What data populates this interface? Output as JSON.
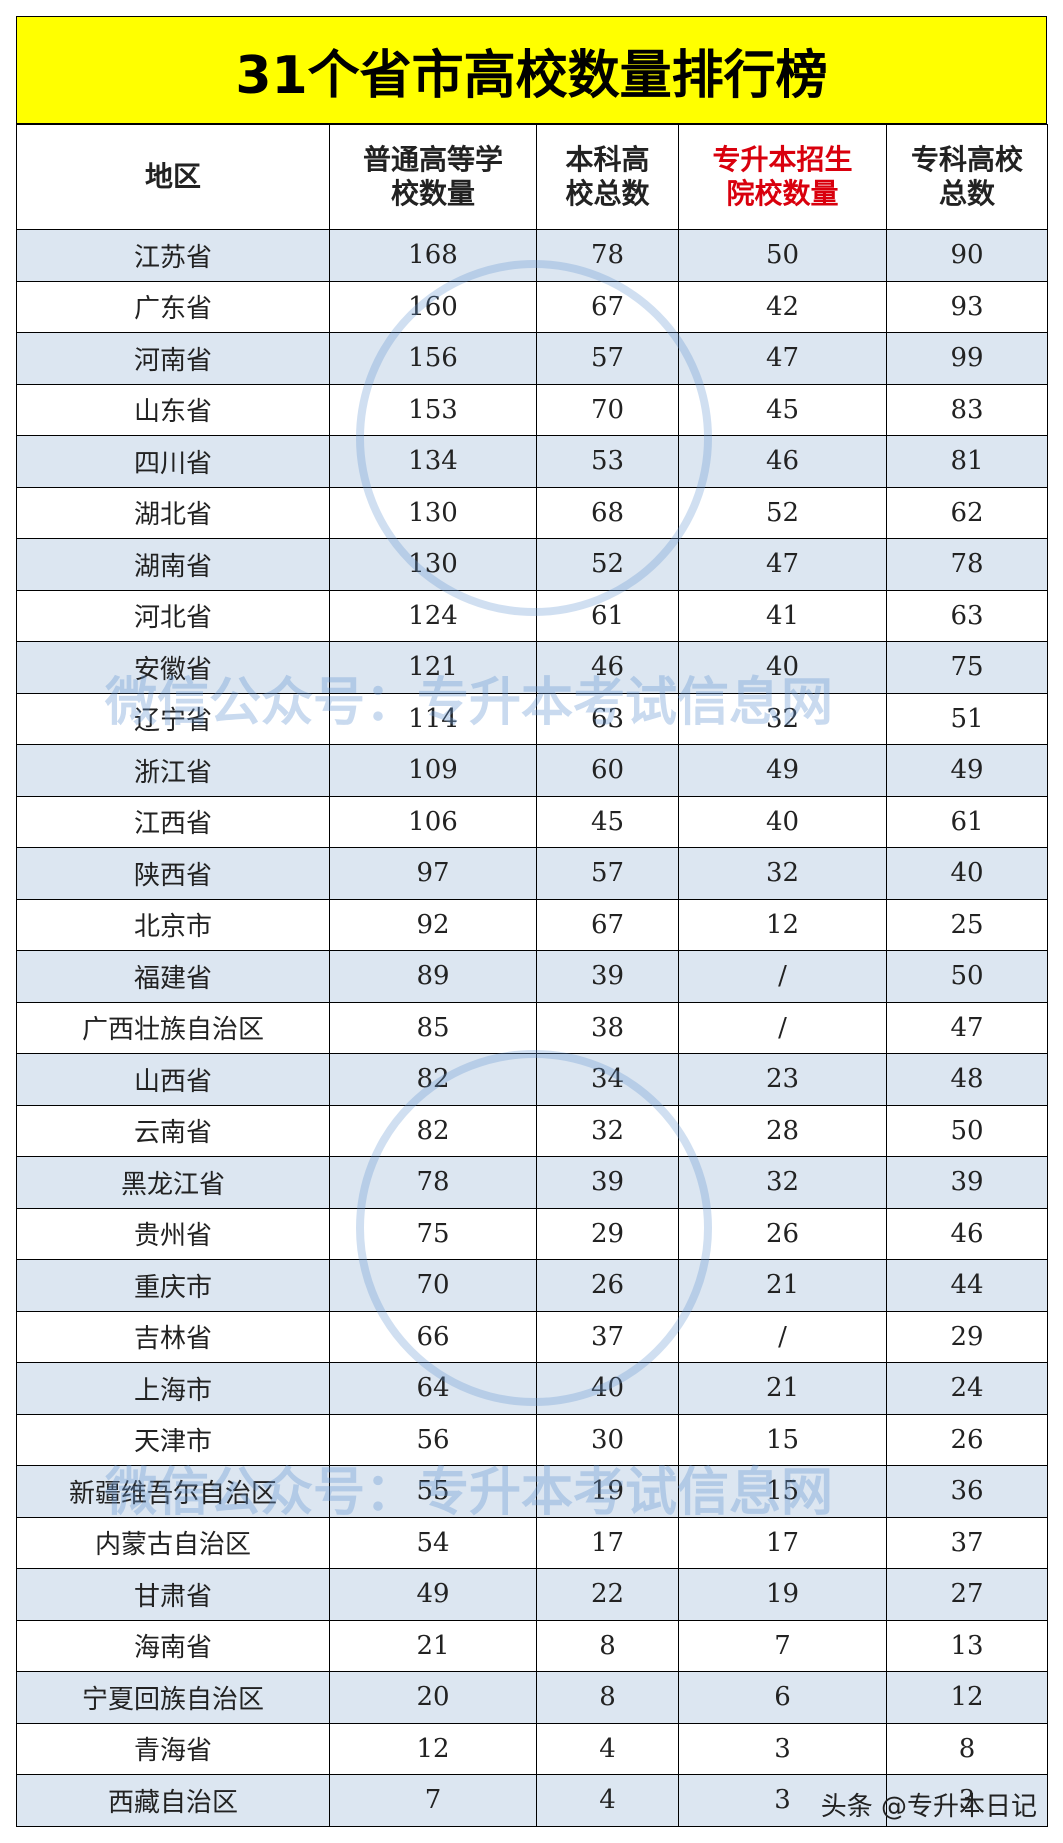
{
  "title": "31个省市高校数量排行榜",
  "table": {
    "header": [
      "地区",
      "普通高等学校数量",
      "本科高校总数",
      "专升本招生院校数量",
      "专科高校总数"
    ],
    "rows": [
      [
        "江苏省",
        "168",
        "78",
        "50",
        "90"
      ],
      [
        "广东省",
        "160",
        "67",
        "42",
        "93"
      ],
      [
        "河南省",
        "156",
        "57",
        "47",
        "99"
      ],
      [
        "山东省",
        "153",
        "70",
        "45",
        "83"
      ],
      [
        "四川省",
        "134",
        "53",
        "46",
        "81"
      ],
      [
        "湖北省",
        "130",
        "68",
        "52",
        "62"
      ],
      [
        "湖南省",
        "130",
        "52",
        "47",
        "78"
      ],
      [
        "河北省",
        "124",
        "61",
        "41",
        "63"
      ],
      [
        "安徽省",
        "121",
        "46",
        "40",
        "75"
      ],
      [
        "辽宁省",
        "114",
        "63",
        "32",
        "51"
      ],
      [
        "浙江省",
        "109",
        "60",
        "49",
        "49"
      ],
      [
        "江西省",
        "106",
        "45",
        "40",
        "61"
      ],
      [
        "陕西省",
        "97",
        "57",
        "32",
        "40"
      ],
      [
        "北京市",
        "92",
        "67",
        "12",
        "25"
      ],
      [
        "福建省",
        "89",
        "39",
        "/",
        "50"
      ],
      [
        "广西壮族自治区",
        "85",
        "38",
        "/",
        "47"
      ],
      [
        "山西省",
        "82",
        "34",
        "23",
        "48"
      ],
      [
        "云南省",
        "82",
        "32",
        "28",
        "50"
      ],
      [
        "黑龙江省",
        "78",
        "39",
        "32",
        "39"
      ],
      [
        "贵州省",
        "75",
        "29",
        "26",
        "46"
      ],
      [
        "重庆市",
        "70",
        "26",
        "21",
        "44"
      ],
      [
        "吉林省",
        "66",
        "37",
        "/",
        "29"
      ],
      [
        "上海市",
        "64",
        "40",
        "21",
        "24"
      ],
      [
        "天津市",
        "56",
        "30",
        "15",
        "26"
      ],
      [
        "新疆维吾尔自治区",
        "55",
        "19",
        "15",
        "36"
      ],
      [
        "内蒙古自治区",
        "54",
        "17",
        "17",
        "37"
      ],
      [
        "甘肃省",
        "49",
        "22",
        "19",
        "27"
      ],
      [
        "海南省",
        "21",
        "8",
        "7",
        "13"
      ],
      [
        "宁夏回族自治区",
        "20",
        "8",
        "6",
        "12"
      ],
      [
        "青海省",
        "12",
        "4",
        "3",
        "8"
      ],
      [
        "西藏自治区",
        "7",
        "4",
        "3",
        "3"
      ]
    ]
  },
  "watermarks": [
    "微信公众号：专升本考试信息网",
    "微信公众号：专升本考试信息网"
  ],
  "credit": "头条 @专升本日记"
}
